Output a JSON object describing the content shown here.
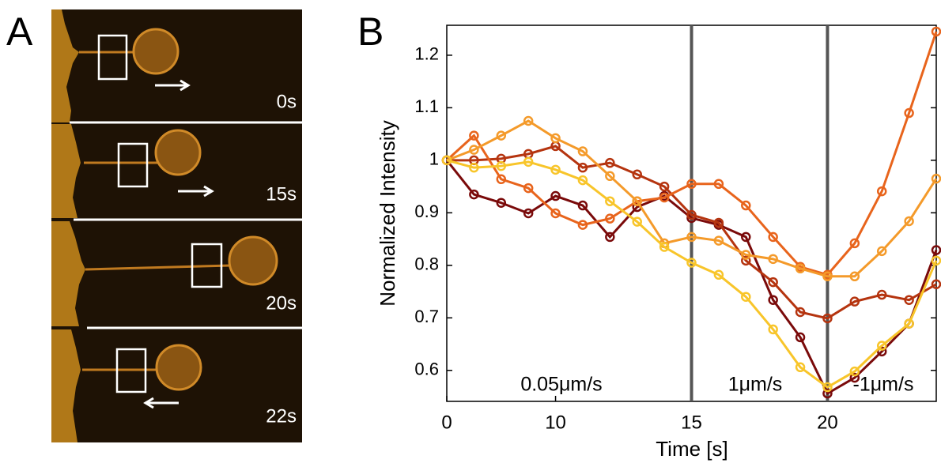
{
  "panel_a": {
    "label": "A",
    "frames": [
      "0s",
      "15s",
      "20s",
      "22s"
    ]
  },
  "chart_data": {
    "type": "line",
    "panel_label": "B",
    "x_label": "Time [s]",
    "y_label": "Normalized Intensity",
    "categories": [
      "0",
      null,
      null,
      null,
      "10",
      null,
      null,
      null,
      null,
      "15",
      null,
      null,
      null,
      null,
      "20",
      null,
      null,
      null,
      null
    ],
    "vlines": [
      "15",
      "20"
    ],
    "annotations": [
      "0.05μm/s",
      "1μm/s",
      "-1μm/s"
    ],
    "ylim": [
      0.541,
      1.257
    ],
    "yticks": [
      0.6,
      0.7,
      0.8,
      0.9,
      1,
      1.1,
      1.2
    ],
    "series": [
      {
        "color": "#7a0a0a",
        "values": [
          1.0,
          0.935,
          0.919,
          0.899,
          0.932,
          0.914,
          0.854,
          0.911,
          0.932,
          0.89,
          0.877,
          0.854,
          0.734,
          0.663,
          0.556,
          0.586,
          0.636,
          0.689,
          0.829
        ]
      },
      {
        "color": "#b5340f",
        "values": [
          1.0,
          1.0,
          1.003,
          1.012,
          1.027,
          0.986,
          0.995,
          0.973,
          0.95,
          0.896,
          0.881,
          0.809,
          0.768,
          0.711,
          0.699,
          0.731,
          0.744,
          0.734,
          0.764
        ]
      },
      {
        "color": "#e8641c",
        "values": [
          1.0,
          1.047,
          0.964,
          0.947,
          0.899,
          0.877,
          0.889,
          0.922,
          0.929,
          0.955,
          0.955,
          0.914,
          0.854,
          0.797,
          0.782,
          0.842,
          0.941,
          1.09,
          1.245
        ]
      },
      {
        "color": "#f49a2a",
        "values": [
          1.0,
          1.02,
          1.047,
          1.075,
          1.042,
          1.017,
          0.97,
          0.922,
          0.842,
          0.854,
          0.847,
          0.82,
          0.812,
          0.794,
          0.779,
          0.779,
          0.827,
          0.884,
          0.965
        ]
      },
      {
        "color": "#f8c52a",
        "values": [
          1.0,
          0.986,
          0.989,
          0.997,
          0.982,
          0.962,
          0.922,
          0.883,
          0.835,
          0.805,
          0.782,
          0.74,
          0.678,
          0.606,
          0.568,
          0.598,
          0.647,
          0.689,
          0.809
        ]
      }
    ]
  }
}
